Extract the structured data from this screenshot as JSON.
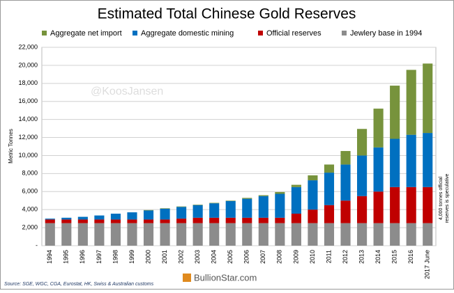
{
  "chart_data": {
    "type": "stacked_bar",
    "title": "Estimated Total Chinese Gold Reserves",
    "y_label": "Metric Tonnes",
    "watermark": "@KoosJansen",
    "note": [
      "4,000 tonnes official",
      "reserves is speculative"
    ],
    "source": "Source: SGE, WGC, CGA, Eurostat, HK, Swiss & Australian customs",
    "logo": "BullionStar.com",
    "categories": [
      "1994",
      "1995",
      "1996",
      "1997",
      "1998",
      "1999",
      "2000",
      "2001",
      "2002",
      "2003",
      "2004",
      "2005",
      "2006",
      "2007",
      "2008",
      "2009",
      "2010",
      "2011",
      "2012",
      "2013",
      "2014",
      "2015",
      "2016",
      "2017 June"
    ],
    "series": [
      {
        "name": "Jewlery base in 1994",
        "color": "#8c8c8c",
        "values": [
          2500,
          2500,
          2500,
          2500,
          2500,
          2500,
          2500,
          2500,
          2500,
          2500,
          2500,
          2500,
          2500,
          2500,
          2500,
          2500,
          2500,
          2500,
          2500,
          2500,
          2500,
          2500,
          2500,
          2500
        ]
      },
      {
        "name": "Official reserves",
        "color": "#c00000",
        "values": [
          400,
          400,
          400,
          400,
          400,
          400,
          400,
          400,
          500,
          600,
          600,
          600,
          600,
          600,
          600,
          1050,
          1500,
          2000,
          2500,
          3000,
          3500,
          4000,
          4000,
          4000
        ]
      },
      {
        "name": "Aggregate domestic mining",
        "color": "#0070c0",
        "values": [
          100,
          200,
          300,
          450,
          650,
          800,
          1000,
          1200,
          1300,
          1400,
          1600,
          1850,
          2100,
          2400,
          2650,
          2950,
          3250,
          3600,
          4000,
          4500,
          4900,
          5350,
          5800,
          6000
        ]
      },
      {
        "name": "Aggregate net import",
        "color": "#77933c",
        "values": [
          0,
          0,
          0,
          0,
          0,
          0,
          50,
          50,
          50,
          50,
          50,
          50,
          100,
          100,
          200,
          250,
          550,
          900,
          1500,
          2950,
          4300,
          5900,
          7200,
          7700
        ]
      }
    ],
    "legend_order": [
      3,
      2,
      1,
      0
    ],
    "ylim": [
      0,
      22000
    ],
    "yticks": [
      {
        "value": 0,
        "label": "-"
      },
      {
        "value": 2000,
        "label": "2,000"
      },
      {
        "value": 4000,
        "label": "4,000"
      },
      {
        "value": 6000,
        "label": "6,000"
      },
      {
        "value": 8000,
        "label": "8,000"
      },
      {
        "value": 10000,
        "label": "10,000"
      },
      {
        "value": 12000,
        "label": "12,000"
      },
      {
        "value": 14000,
        "label": "14,000"
      },
      {
        "value": 16000,
        "label": "16,000"
      },
      {
        "value": 18000,
        "label": "18,000"
      },
      {
        "value": 20000,
        "label": "20,000"
      },
      {
        "value": 22000,
        "label": "22,000"
      }
    ],
    "grid": true
  }
}
